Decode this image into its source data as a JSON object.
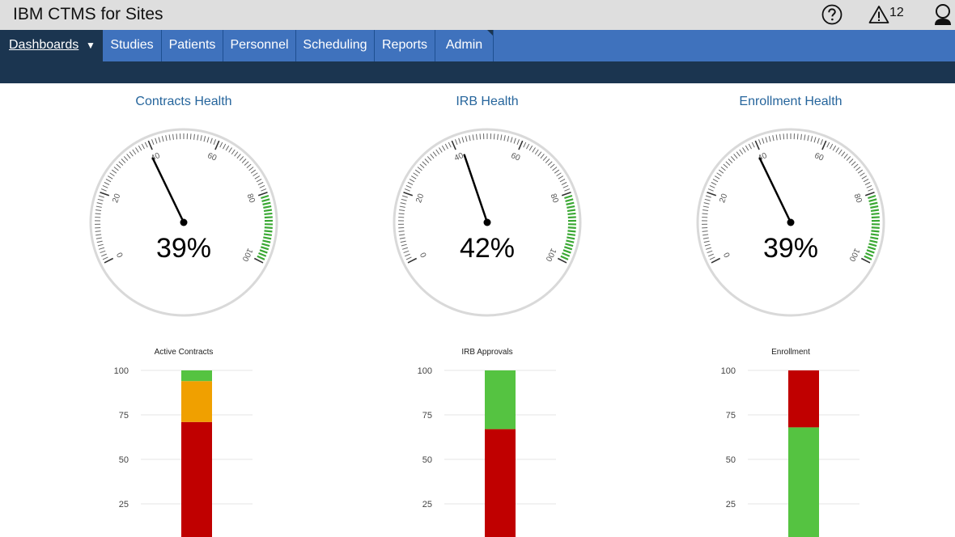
{
  "header": {
    "app_title": "IBM CTMS for Sites",
    "alert_count": "12",
    "icons": [
      "help-icon",
      "alert-icon",
      "user-icon"
    ]
  },
  "nav": {
    "active": "Dashboards",
    "items": [
      "Studies",
      "Patients",
      "Personnel",
      "Scheduling",
      "Reports",
      "Admin"
    ]
  },
  "colors": {
    "nav_bg": "#3f72bd",
    "nav_active_bg": "#1b3550",
    "title_blue": "#26659c",
    "red": "#c00000",
    "orange": "#f0a000",
    "green": "#55c341"
  },
  "gauges": [
    {
      "title": "Contracts Health",
      "value": 39,
      "display": "39%"
    },
    {
      "title": "IRB Health",
      "value": 42,
      "display": "42%"
    },
    {
      "title": "Enrollment Health",
      "value": 39,
      "display": "39%"
    }
  ],
  "gauge_ticks": [
    "0",
    "20",
    "40",
    "60",
    "80",
    "100"
  ],
  "chart_data": [
    {
      "type": "bar",
      "title": "Active Contracts",
      "yticks": [
        "100",
        "75",
        "50",
        "25"
      ],
      "ylim": [
        0,
        100
      ],
      "segments": [
        {
          "color": "#c00000",
          "from": 0,
          "to": 71
        },
        {
          "color": "#f0a000",
          "from": 71,
          "to": 94
        },
        {
          "color": "#55c341",
          "from": 94,
          "to": 100
        }
      ]
    },
    {
      "type": "bar",
      "title": "IRB Approvals",
      "yticks": [
        "100",
        "75",
        "50",
        "25"
      ],
      "ylim": [
        0,
        100
      ],
      "segments": [
        {
          "color": "#c00000",
          "from": 0,
          "to": 67
        },
        {
          "color": "#55c341",
          "from": 67,
          "to": 100
        }
      ]
    },
    {
      "type": "bar",
      "title": "Enrollment",
      "yticks": [
        "100",
        "75",
        "50",
        "25"
      ],
      "ylim": [
        0,
        100
      ],
      "segments": [
        {
          "color": "#55c341",
          "from": 0,
          "to": 68
        },
        {
          "color": "#c00000",
          "from": 68,
          "to": 100
        }
      ]
    }
  ]
}
